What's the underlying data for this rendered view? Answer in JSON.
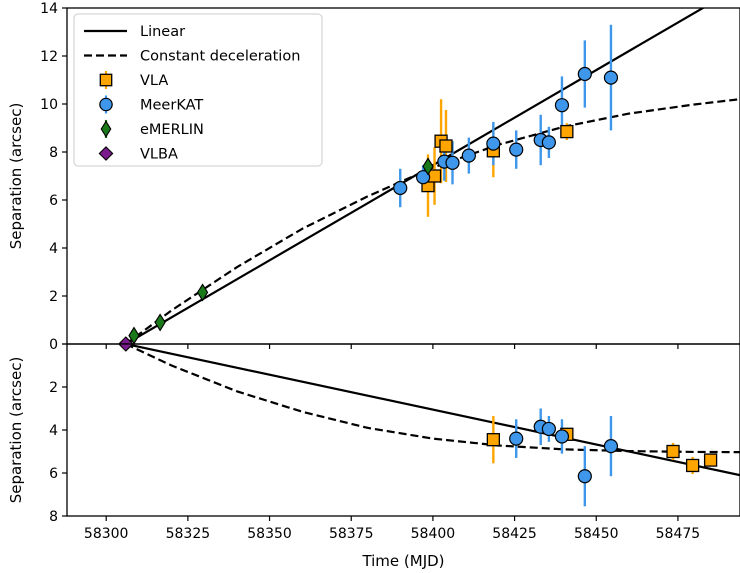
{
  "chart_data": {
    "type": "scatter",
    "xlabel": "Time (MJD)",
    "xlim": [
      58288,
      58494
    ],
    "xticks": [
      "58300",
      "58325",
      "58350",
      "58375",
      "58400",
      "58425",
      "58450",
      "58475"
    ],
    "panels": [
      {
        "ylabel": "Separation (arcsec)",
        "ylim": [
          0,
          14
        ],
        "yticks": [
          "0",
          "2",
          "4",
          "6",
          "8",
          "10",
          "12",
          "14"
        ],
        "models": [
          {
            "name": "Linear",
            "style": "solid",
            "x": [
              58306,
              58494
            ],
            "y": [
              0,
              14.9
            ]
          },
          {
            "name": "Constant deceleration",
            "style": "dashed",
            "x": [
              58306,
              58320,
              58340,
              58360,
              58380,
              58400,
              58420,
              58440,
              58460,
              58480,
              58494
            ],
            "y": [
              0,
              1.4,
              3.2,
              4.8,
              6.15,
              7.35,
              8.3,
              9.05,
              9.6,
              9.98,
              10.2
            ]
          }
        ],
        "series": [
          {
            "name": "VLA",
            "marker": "square",
            "color": "#ffa500",
            "points": [
              {
                "x": 58398.5,
                "y": 6.6,
                "err": 1.3
              },
              {
                "x": 58400.5,
                "y": 7.0,
                "err": 1.2
              },
              {
                "x": 58402.5,
                "y": 8.45,
                "err": 1.75
              },
              {
                "x": 58404,
                "y": 8.25,
                "err": 1.5
              },
              {
                "x": 58418.5,
                "y": 8.05,
                "err": 1.1
              },
              {
                "x": 58441,
                "y": 8.85,
                "err": 0.35
              }
            ]
          },
          {
            "name": "MeerKAT",
            "marker": "circle",
            "color": "#3e97ea",
            "points": [
              {
                "x": 58390,
                "y": 6.5,
                "err": 0.8
              },
              {
                "x": 58397,
                "y": 6.95,
                "err": 0.5
              },
              {
                "x": 58403.5,
                "y": 7.6,
                "err": 0.8
              },
              {
                "x": 58406,
                "y": 7.55,
                "err": 0.9
              },
              {
                "x": 58411,
                "y": 7.85,
                "err": 0.75
              },
              {
                "x": 58418.5,
                "y": 8.35,
                "err": 0.9
              },
              {
                "x": 58425.5,
                "y": 8.1,
                "err": 0.8
              },
              {
                "x": 58433,
                "y": 8.5,
                "err": 1.05
              },
              {
                "x": 58435.5,
                "y": 8.4,
                "err": 0.65
              },
              {
                "x": 58439.5,
                "y": 9.95,
                "err": 1.2
              },
              {
                "x": 58446.5,
                "y": 11.25,
                "err": 1.4
              },
              {
                "x": 58454.5,
                "y": 11.1,
                "err": 2.2
              }
            ]
          },
          {
            "name": "eMERLIN",
            "marker": "thin_diamond",
            "color": "#1a7a1a",
            "points": [
              {
                "x": 58308.5,
                "y": 0.35,
                "err": 0.1
              },
              {
                "x": 58316.5,
                "y": 0.9,
                "err": 0.1
              },
              {
                "x": 58329.5,
                "y": 2.15,
                "err": 0.1
              },
              {
                "x": 58398.5,
                "y": 7.4,
                "err": 0.1
              }
            ]
          },
          {
            "name": "VLBA",
            "marker": "diamond",
            "color": "#7b1a8c",
            "points": [
              {
                "x": 58306,
                "y": 0.0,
                "err": 0
              }
            ]
          }
        ]
      },
      {
        "ylabel": "Separation (arcsec)",
        "ylim": [
          0,
          8
        ],
        "yticks": [
          "8",
          "6",
          "4",
          "2",
          "0"
        ],
        "inverted": true,
        "models": [
          {
            "name": "Linear",
            "style": "solid",
            "x": [
              58306,
              58494
            ],
            "y": [
              0,
              6.1
            ]
          },
          {
            "name": "Constant deceleration",
            "style": "dashed",
            "x": [
              58306,
              58320,
              58340,
              58360,
              58380,
              58400,
              58420,
              58440,
              58460,
              58480,
              58494
            ],
            "y": [
              0,
              1.0,
              2.2,
              3.15,
              3.9,
              4.4,
              4.72,
              4.9,
              4.98,
              5.02,
              5.03
            ]
          }
        ],
        "series": [
          {
            "name": "VLA",
            "marker": "square",
            "color": "#ffa500",
            "points": [
              {
                "x": 58418.5,
                "y": 4.45,
                "err": 1.1
              },
              {
                "x": 58441,
                "y": 4.2,
                "err": 0.3
              },
              {
                "x": 58473.5,
                "y": 5.0,
                "err": 0.4
              },
              {
                "x": 58479.5,
                "y": 5.65,
                "err": 0.4
              },
              {
                "x": 58485,
                "y": 5.4,
                "err": 0.3
              }
            ]
          },
          {
            "name": "MeerKAT",
            "marker": "circle",
            "color": "#3e97ea",
            "points": [
              {
                "x": 58425.5,
                "y": 4.4,
                "err": 0.9
              },
              {
                "x": 58433,
                "y": 3.85,
                "err": 0.85
              },
              {
                "x": 58435.5,
                "y": 3.95,
                "err": 0.6
              },
              {
                "x": 58439.5,
                "y": 4.3,
                "err": 0.8
              },
              {
                "x": 58446.5,
                "y": 6.15,
                "err": 1.4
              },
              {
                "x": 58454.5,
                "y": 4.75,
                "err": 1.4
              }
            ]
          },
          {
            "name": "VLBA",
            "marker": "diamond",
            "color": "#7b1a8c",
            "points": [
              {
                "x": 58306,
                "y": 0.0,
                "err": 0
              }
            ]
          }
        ]
      }
    ],
    "legend": {
      "placement": "top-left",
      "entries": [
        {
          "label": "Linear",
          "kind": "solid"
        },
        {
          "label": "Constant deceleration",
          "kind": "dashed"
        },
        {
          "label": "VLA",
          "kind": "square",
          "color": "#ffa500"
        },
        {
          "label": "MeerKAT",
          "kind": "circle",
          "color": "#3e97ea"
        },
        {
          "label": "eMERLIN",
          "kind": "thin_diamond",
          "color": "#1a7a1a"
        },
        {
          "label": "VLBA",
          "kind": "diamond",
          "color": "#7b1a8c"
        }
      ]
    }
  }
}
